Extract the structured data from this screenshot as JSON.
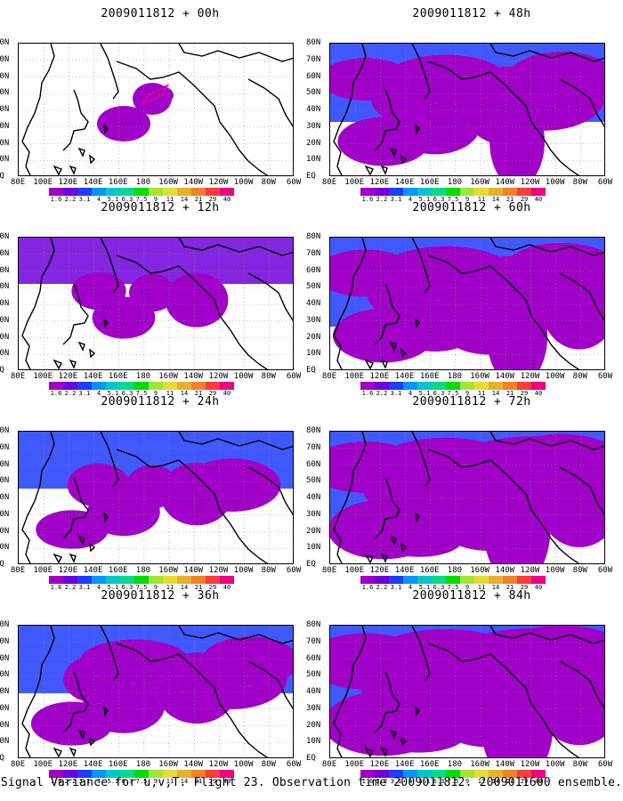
{
  "latitude_labels": [
    "80N",
    "70N",
    "60N",
    "50N",
    "40N",
    "30N",
    "20N",
    "10N",
    "EQ"
  ],
  "longitude_labels": [
    "80E",
    "100E",
    "120E",
    "140E",
    "160E",
    "180",
    "160W",
    "140W",
    "120W",
    "100W",
    "80W",
    "60W"
  ],
  "colorbar": {
    "labels": [
      "1.6",
      "2.2",
      "3.1",
      "4",
      "5.1",
      "6.3",
      "7.5",
      "9",
      "11",
      "14",
      "21",
      "29",
      "40"
    ],
    "colors": [
      "#a000c8",
      "#6e00dc",
      "#1e3cff",
      "#0096ff",
      "#00c8c8",
      "#00dc8c",
      "#00dc00",
      "#a0e632",
      "#e6dc32",
      "#e6af2d",
      "#f08228",
      "#fa3c3c",
      "#f00082"
    ]
  },
  "panels": [
    {
      "title": "2009011812 + 00h",
      "intensity": 0
    },
    {
      "title": "2009011812 + 48h",
      "intensity": 4
    },
    {
      "title": "2009011812 + 12h",
      "intensity": 1
    },
    {
      "title": "2009011812 + 60h",
      "intensity": 5
    },
    {
      "title": "2009011812 + 24h",
      "intensity": 2
    },
    {
      "title": "2009011812 + 72h",
      "intensity": 6
    },
    {
      "title": "2009011812 + 36h",
      "intensity": 3
    },
    {
      "title": "2009011812 + 84h",
      "intensity": 7
    }
  ],
  "footer": "Signal Variance for u,v,T. Flight 23. Observation time 2009011812. 2009011600 ensemble."
}
